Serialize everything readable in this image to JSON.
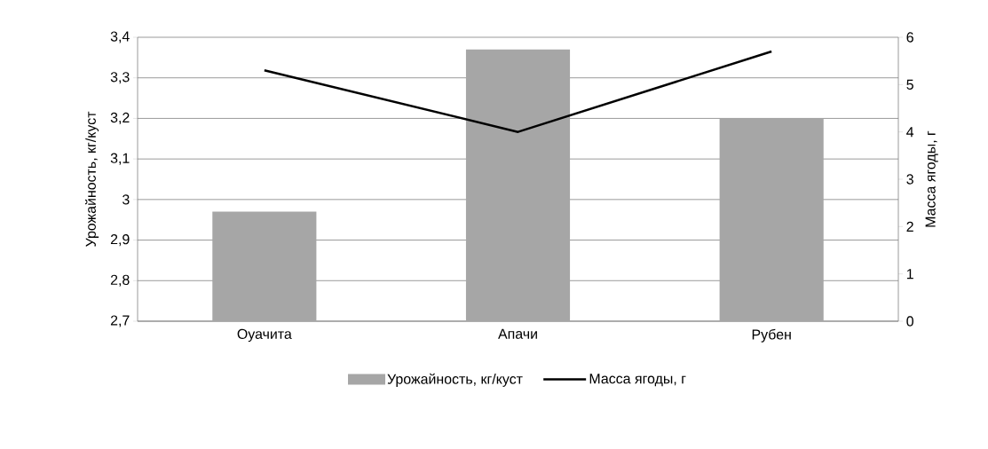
{
  "chart_data": {
    "type": "bar",
    "categories": [
      "Оуачита",
      "Апачи",
      "Рубен"
    ],
    "ylabel": "Урожайность, кг/куст",
    "y2label": "Масса ягоды, г",
    "ylim": [
      2.7,
      3.4
    ],
    "yticks": [
      {
        "value": 2.7,
        "label": "2,7"
      },
      {
        "value": 2.8,
        "label": "2,8"
      },
      {
        "value": 2.9,
        "label": "2,9"
      },
      3,
      {
        "value": 3.1,
        "label": "3,1"
      },
      {
        "value": 3.2,
        "label": "3,2"
      },
      {
        "value": 3.3,
        "label": "3,3"
      },
      {
        "value": 3.4,
        "label": "3,4"
      }
    ],
    "y2lim": [
      0,
      6
    ],
    "y2ticks": [
      0,
      1,
      2,
      3,
      4,
      5,
      6
    ],
    "grid": "y",
    "legend": "bottom",
    "marker": "none",
    "series": [
      {
        "name": "Урожайность, кг/куст",
        "color": "#a6a6a6",
        "values": [
          2.97,
          3.37,
          3.2
        ]
      },
      {
        "name": "Масса ягоды, г",
        "type": "line",
        "axis": "y2",
        "color": "#000000",
        "values": [
          5.3,
          4.0,
          5.7
        ]
      }
    ]
  }
}
